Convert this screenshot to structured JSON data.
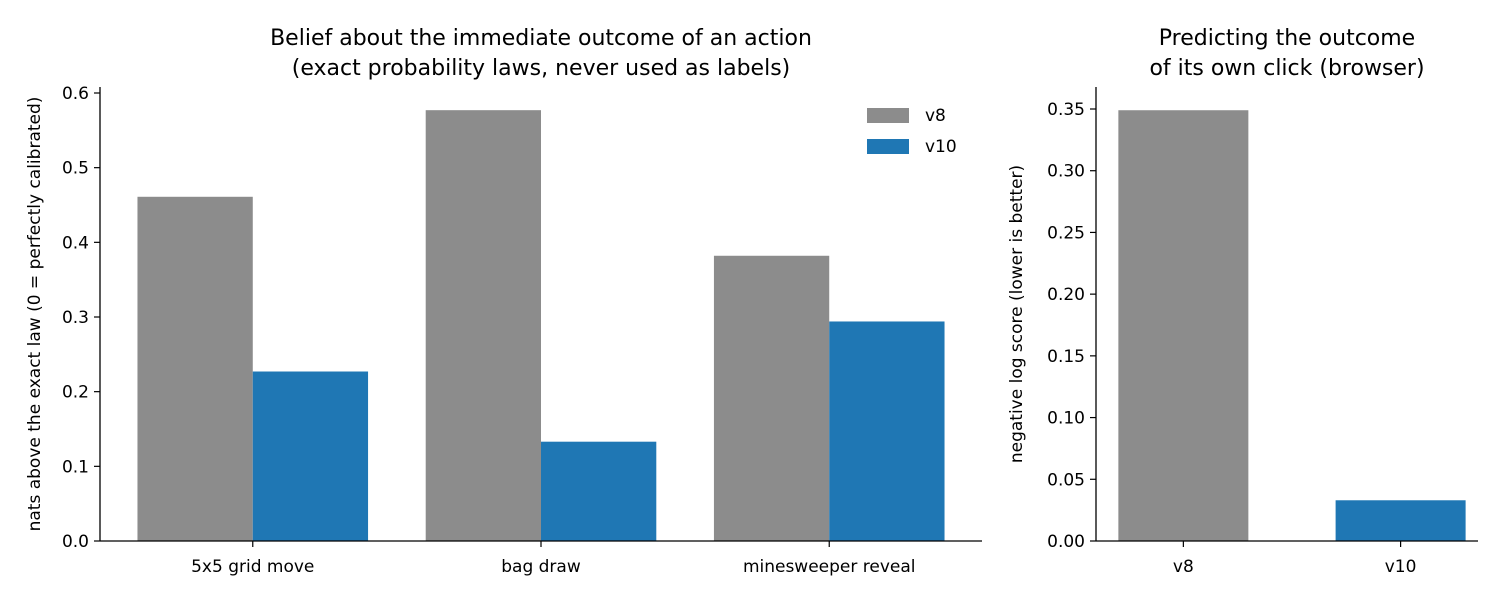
{
  "chart_data": [
    {
      "type": "bar",
      "title": [
        "Belief about the immediate outcome of an action",
        "(exact probability laws, never used as labels)"
      ],
      "xlabel": "",
      "ylabel": "nats above the exact law (0 = perfectly calibrated)",
      "categories": [
        "5x5 grid move",
        "bag draw",
        "minesweeper reveal"
      ],
      "series": [
        {
          "name": "v8",
          "color": "#8c8c8c",
          "values": [
            0.461,
            0.577,
            0.382
          ]
        },
        {
          "name": "v10",
          "color": "#1f77b4",
          "values": [
            0.227,
            0.133,
            0.294
          ]
        }
      ],
      "ylim": [
        0,
        0.61
      ],
      "yticks": [
        "0.0",
        "0.1",
        "0.2",
        "0.3",
        "0.4",
        "0.5",
        "0.6"
      ],
      "legend_position": "top-right",
      "grid": false
    },
    {
      "type": "bar",
      "title": [
        "Predicting the outcome",
        "of its own click (browser)"
      ],
      "xlabel": "",
      "ylabel": "negative log score (lower is better)",
      "categories": [
        "v8",
        "v10"
      ],
      "values": [
        0.349,
        0.033
      ],
      "colors": [
        "#8c8c8c",
        "#1f77b4"
      ],
      "ylim": [
        0,
        0.366
      ],
      "yticks": [
        "0.00",
        "0.05",
        "0.10",
        "0.15",
        "0.20",
        "0.25",
        "0.30",
        "0.35"
      ],
      "grid": false
    }
  ]
}
